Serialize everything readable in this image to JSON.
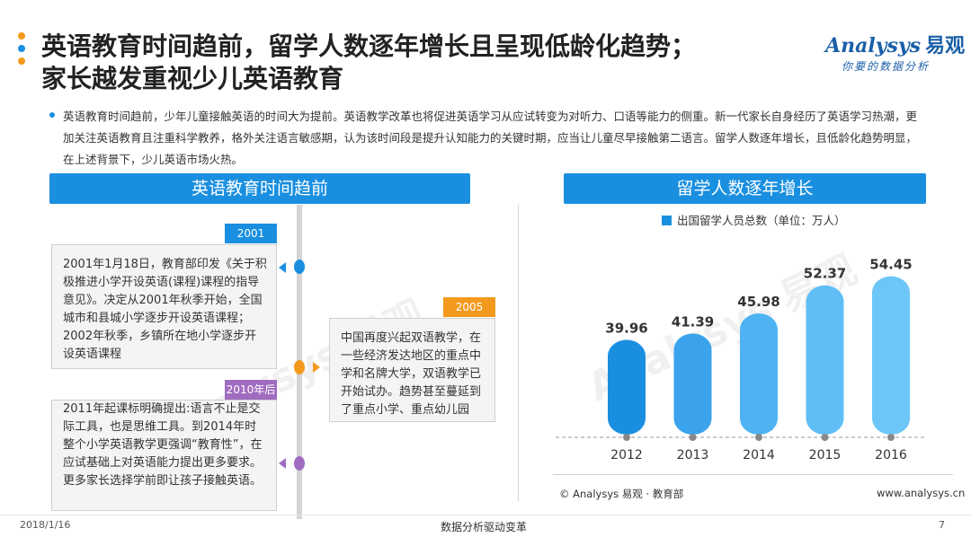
{
  "title": {
    "line1": "英语教育时间趋前，留学人数逐年增长且呈现低龄化趋势；",
    "line2": "家长越发重视少儿英语教育"
  },
  "logo": {
    "brand_prefix": "nalysys",
    "brand_cn": "易观",
    "slogan": "你要的数据分析"
  },
  "intro": "英语教育时间趋前，少年儿童接触英语的时间大为提前。英语教学改革也将促进英语学习从应试转变为对听力、口语等能力的侧重。新一代家长自身经历了英语学习热潮，更加关注英语教育且注重科学教养，格外关注语言敏感期，认为该时间段是提升认知能力的关键时期，应当让儿童尽早接触第二语言。留学人数逐年增长，且低龄化趋势明显，在上述背景下，少儿英语市场火热。",
  "left_panel": {
    "banner": "英语教育时间趋前",
    "events": [
      {
        "tag": "2001",
        "text": "2001年1月18日，教育部印发《关于积极推进小学开设英语(课程)课程的指导意见》。决定从2001年秋季开始，全国城市和县城小学逐步开设英语课程；2002年秋季，乡镇所在地小学逐步开设英语课程"
      },
      {
        "tag": "2005",
        "text": "中国再度兴起双语教学，在一些经济发达地区的重点中学和名牌大学，双语教学已开始试办。趋势甚至蔓延到了重点小学、重点幼儿园"
      },
      {
        "tag": "2010年后",
        "text": "2011年起课标明确提出:语言不止是交际工具，也是思维工具。到2014年时整个小学英语教学更强调“教育性”，在应试基础上对英语能力提出更多要求。更多家长选择学前即让孩子接触英语。"
      }
    ]
  },
  "right_panel": {
    "banner": "留学人数逐年增长",
    "source": "© Analysys 易观 · 教育部",
    "website": "www.analysys.cn"
  },
  "chart_data": {
    "type": "bar",
    "categories": [
      "2012",
      "2013",
      "2014",
      "2015",
      "2016"
    ],
    "series": [
      {
        "name": "出国留学人员总数（单位：万人）",
        "values": [
          39.96,
          41.39,
          45.98,
          52.37,
          54.45
        ]
      }
    ],
    "legend_position": "top",
    "colors": [
      "#1a8fe0",
      "#3aa3ec",
      "#4db3f2",
      "#5fbff5",
      "#6cc6f7"
    ],
    "grid": false
  },
  "footer": {
    "date": "2018/1/16",
    "center": "数据分析驱动变革",
    "page": "7"
  }
}
